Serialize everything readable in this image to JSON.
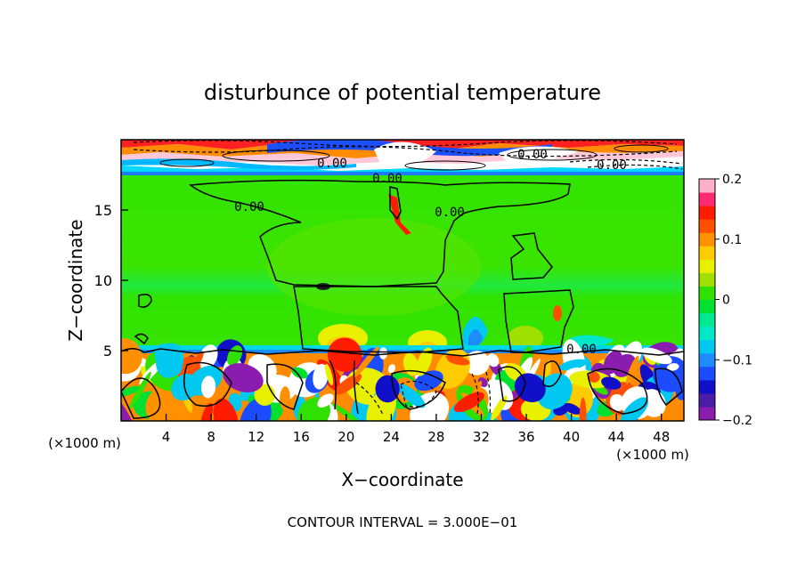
{
  "chart_data": {
    "type": "heatmap",
    "title": "disturbunce of potential temperature",
    "xlabel": "X−coordinate",
    "ylabel": "Z−coordinate",
    "x_unit_left": "(×1000 m)",
    "x_unit_right": "(×1000 m)",
    "footer": "CONTOUR INTERVAL = 3.000E−01",
    "xlim": [
      0,
      50
    ],
    "ylim": [
      0,
      20
    ],
    "x_ticks": [
      4,
      8,
      12,
      16,
      20,
      24,
      28,
      32,
      36,
      40,
      44,
      48
    ],
    "x_tick_labels": [
      "4",
      "8",
      "12",
      "16",
      "20",
      "24",
      "28",
      "32",
      "36",
      "40",
      "44",
      "48"
    ],
    "y_ticks": [
      5,
      10,
      15
    ],
    "y_tick_labels": [
      "5",
      "10",
      "15"
    ],
    "colorbar": {
      "range": [
        -0.2,
        0.2
      ],
      "ticks": [
        0.2,
        0.1,
        0,
        -0.1,
        -0.2
      ],
      "tick_labels": [
        "0.2",
        "0.1",
        "0",
        "−0.1",
        "−0.2"
      ],
      "colors": [
        "#8a1cb0",
        "#4a1ca8",
        "#1010c8",
        "#1c4cff",
        "#1c8cff",
        "#00c8f0",
        "#00e8c8",
        "#00e890",
        "#00e030",
        "#30e000",
        "#a0e000",
        "#e8f000",
        "#ffcc00",
        "#ff9000",
        "#ff5000",
        "#ff1c00",
        "#ff2a70",
        "#ffb0c8"
      ]
    },
    "contour_labels": [
      "0.00",
      "0.00",
      "0.00",
      "0.00",
      "0.00",
      "0.00",
      "0.00"
    ]
  }
}
